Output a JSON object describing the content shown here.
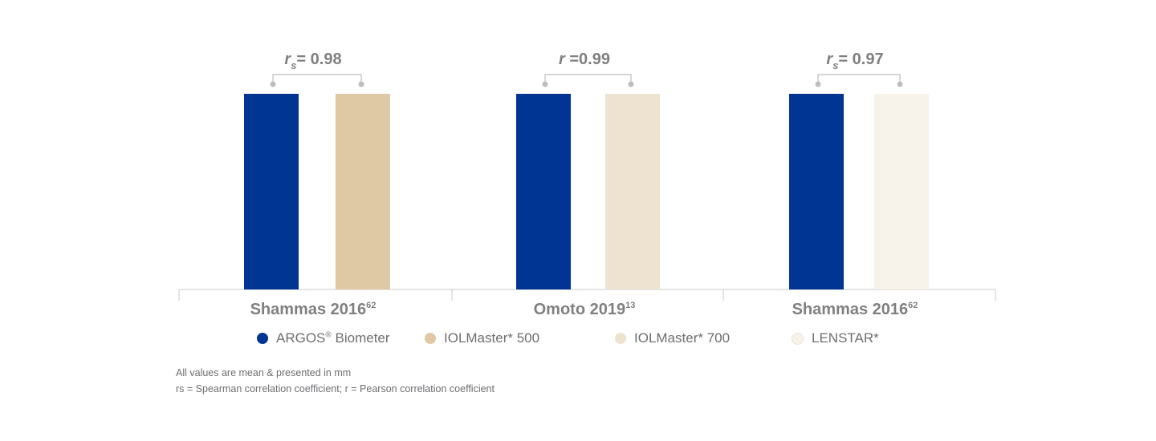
{
  "chart_data": {
    "type": "bar",
    "groups": [
      {
        "label": "Shammas 2016",
        "superscript": "62",
        "stat_symbol": "r",
        "stat_sub": "s",
        "stat_value": "= 0.98",
        "bars": [
          {
            "series": "ARGOS® Biometer",
            "color": "#003594"
          },
          {
            "series": "IOLMaster* 500",
            "color": "#dfc9a4"
          }
        ]
      },
      {
        "label": "Omoto 2019",
        "superscript": "13",
        "stat_symbol": "r",
        "stat_sub": "",
        "stat_value": " =0.99",
        "bars": [
          {
            "series": "ARGOS® Biometer",
            "color": "#003594"
          },
          {
            "series": "IOLMaster* 700",
            "color": "#ede3d0"
          }
        ]
      },
      {
        "label": "Shammas 2016",
        "superscript": "62",
        "stat_symbol": "r",
        "stat_sub": "s",
        "stat_value": "= 0.97",
        "bars": [
          {
            "series": "ARGOS® Biometer",
            "color": "#003594"
          },
          {
            "series": "LENSTAR*",
            "color": "#f7f2ea"
          }
        ]
      }
    ],
    "legend": [
      {
        "name": "ARGOS",
        "reg": "®",
        "suffix": " Biometer",
        "color": "#003594"
      },
      {
        "name": "IOLMaster* 500",
        "reg": "",
        "suffix": "",
        "color": "#dfc9a4"
      },
      {
        "name": "IOLMaster* 700",
        "reg": "",
        "suffix": "",
        "color": "#ede3d0"
      },
      {
        "name": "LENSTAR*",
        "reg": "",
        "suffix": "",
        "color": "#f7f2ea"
      }
    ],
    "legend_position": "bottom"
  },
  "notes": {
    "line1": "All values are mean & presented in mm",
    "line2": "rs = Spearman correlation coefficient; r = Pearson correlation coefficient"
  },
  "colors": {
    "axis": "#c8c8c8",
    "bracket": "#bdbdbd",
    "label_text": "#808080"
  }
}
